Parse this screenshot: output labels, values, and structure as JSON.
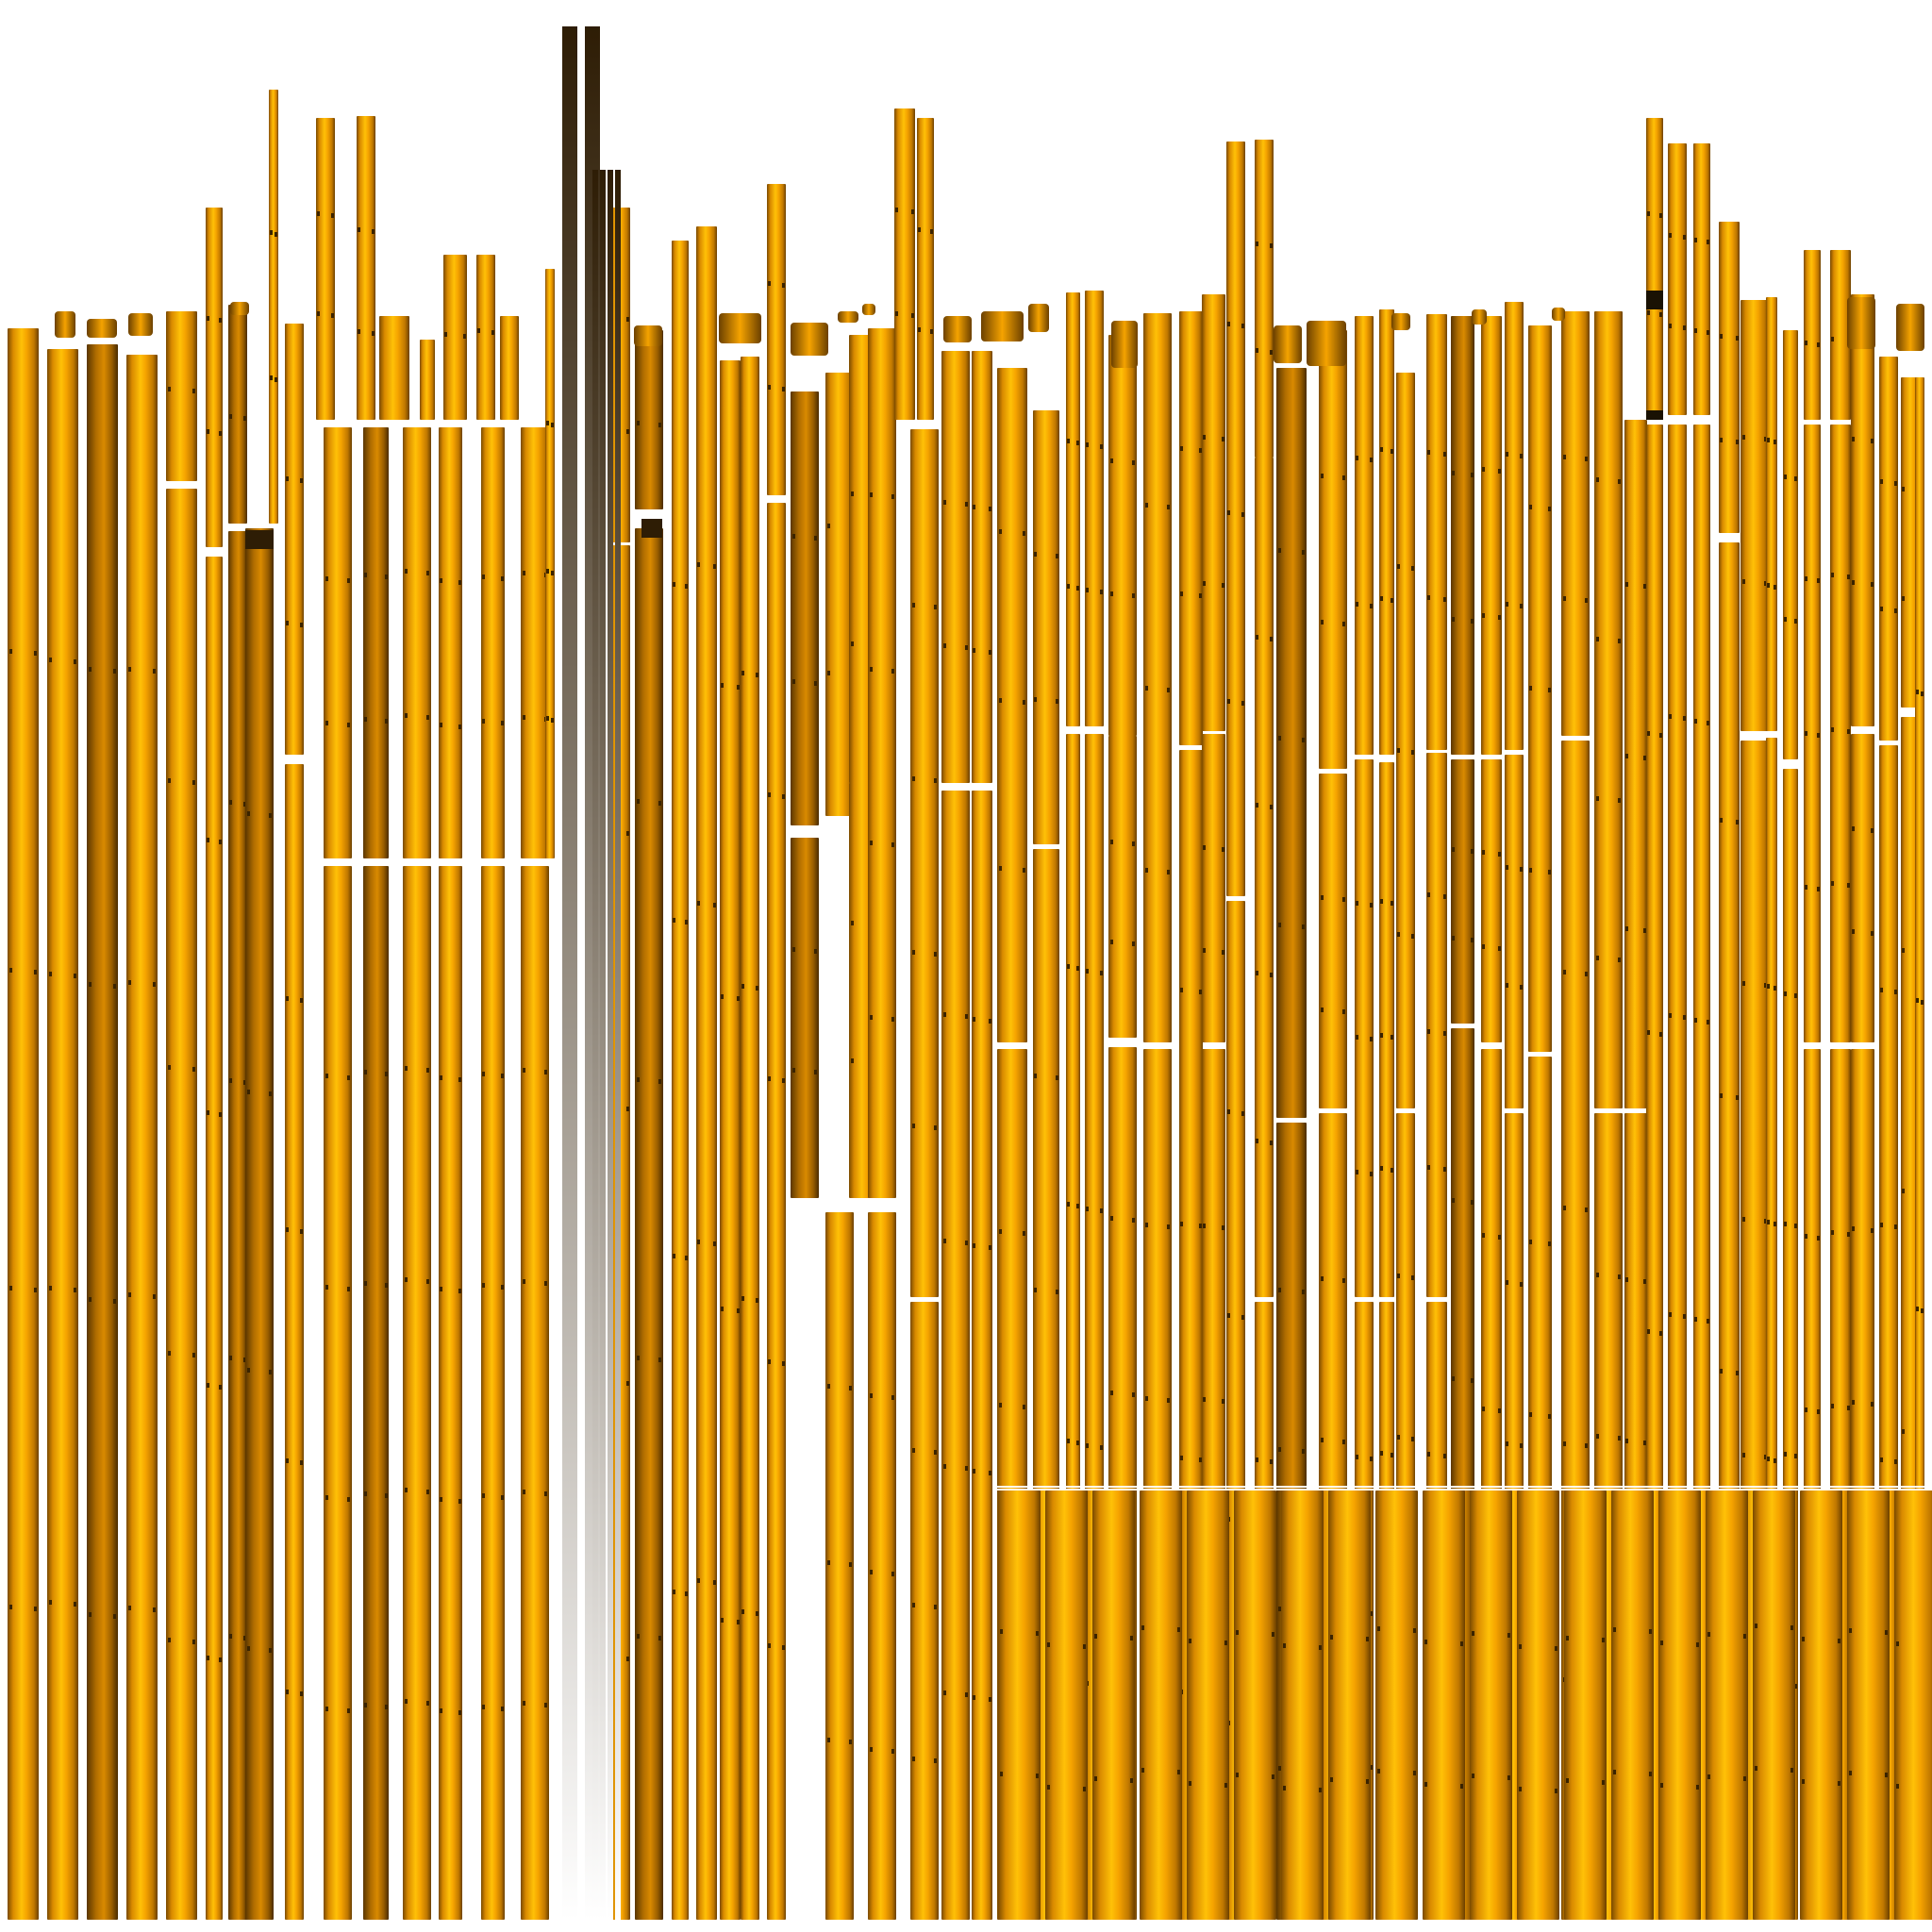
{
  "image": {
    "subject": "texture-atlas",
    "background": "#ffffff"
  },
  "palette": {
    "gold_light": "#ffc107",
    "gold": "#f5a300",
    "amber": "#d98a00",
    "bronze": "#8a5600",
    "dark": "#2e1d05",
    "seam": "#ffffff"
  },
  "icons": {
    "strip": "gold-bar-strip",
    "cap": "bulb-cap-piece",
    "mark": "dark-notch-mark"
  }
}
